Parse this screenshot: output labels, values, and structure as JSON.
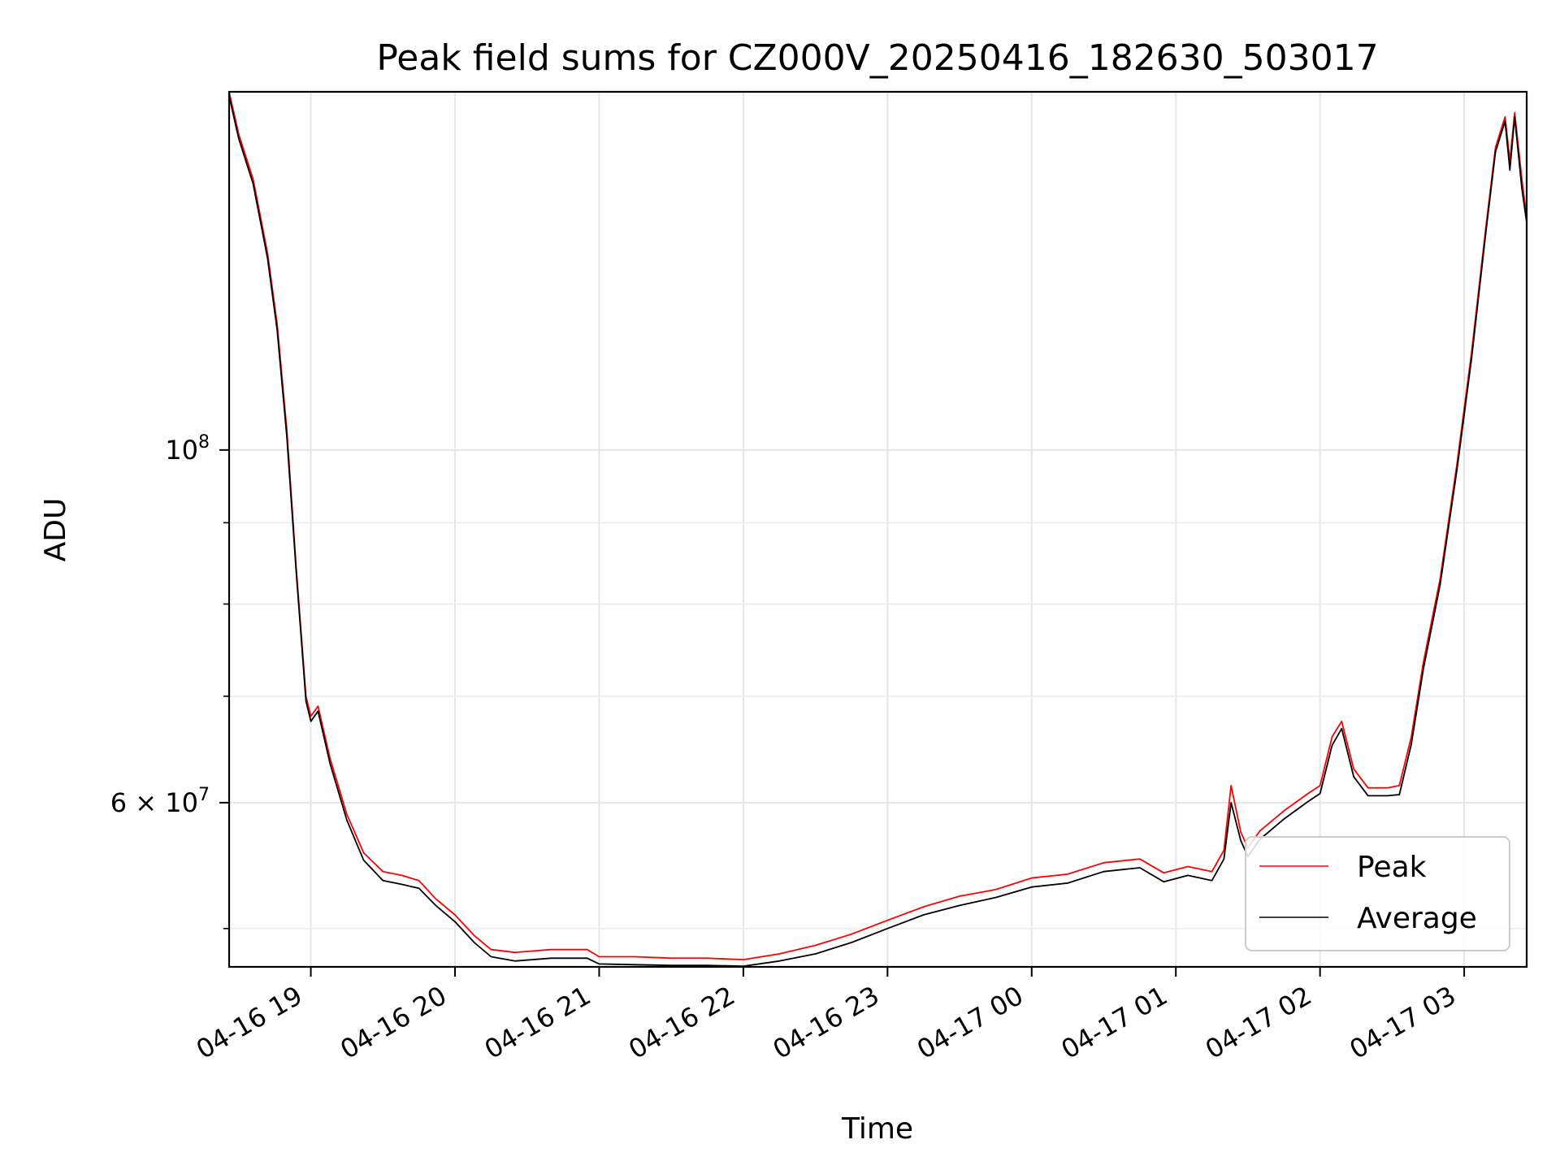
{
  "chart_data": {
    "type": "line",
    "title": "Peak field sums for CZ000V_20250416_182630_503017",
    "xlabel": "Time",
    "ylabel": "ADU",
    "y_scale": "log",
    "grid": true,
    "legend_position": "lower-right",
    "xlim": [
      "2025-04-16 18:26",
      "2025-04-17 03:26"
    ],
    "ylim": [
      47300000,
      168000000
    ],
    "x_ticks": [
      {
        "time": "2025-04-16 19:00",
        "label": "04-16 19"
      },
      {
        "time": "2025-04-16 20:00",
        "label": "04-16 20"
      },
      {
        "time": "2025-04-16 21:00",
        "label": "04-16 21"
      },
      {
        "time": "2025-04-16 22:00",
        "label": "04-16 22"
      },
      {
        "time": "2025-04-16 23:00",
        "label": "04-16 23"
      },
      {
        "time": "2025-04-17 00:00",
        "label": "04-17 00"
      },
      {
        "time": "2025-04-17 01:00",
        "label": "04-17 01"
      },
      {
        "time": "2025-04-17 02:00",
        "label": "04-17 02"
      },
      {
        "time": "2025-04-17 03:00",
        "label": "04-17 03"
      }
    ],
    "y_major_ticks": [
      {
        "value": 100000000,
        "base": "10",
        "exp": "8"
      },
      {
        "value": 60000000,
        "base": "6 × 10",
        "exp": "7"
      }
    ],
    "y_minor_ticks": [
      50000000,
      70000000,
      80000000,
      90000000
    ],
    "series": [
      {
        "name": "Peak",
        "color": "#ff0000",
        "points": [
          [
            "2025-04-16 18:26",
            168000000
          ],
          [
            "2025-04-16 18:30",
            158000000
          ],
          [
            "2025-04-16 18:36",
            148000000
          ],
          [
            "2025-04-16 18:42",
            133000000
          ],
          [
            "2025-04-16 18:46",
            120000000
          ],
          [
            "2025-04-16 18:50",
            103000000
          ],
          [
            "2025-04-16 18:54",
            84000000
          ],
          [
            "2025-04-16 18:58",
            70000000
          ],
          [
            "2025-04-16 19:00",
            68000000
          ],
          [
            "2025-04-16 19:03",
            69000000
          ],
          [
            "2025-04-16 19:08",
            64000000
          ],
          [
            "2025-04-16 19:15",
            59000000
          ],
          [
            "2025-04-16 19:22",
            55800000
          ],
          [
            "2025-04-16 19:30",
            54300000
          ],
          [
            "2025-04-16 19:38",
            54000000
          ],
          [
            "2025-04-16 19:45",
            53600000
          ],
          [
            "2025-04-16 19:52",
            52200000
          ],
          [
            "2025-04-16 20:00",
            51000000
          ],
          [
            "2025-04-16 20:08",
            49500000
          ],
          [
            "2025-04-16 20:15",
            48500000
          ],
          [
            "2025-04-16 20:25",
            48300000
          ],
          [
            "2025-04-16 20:40",
            48500000
          ],
          [
            "2025-04-16 20:55",
            48500000
          ],
          [
            "2025-04-16 21:00",
            48000000
          ],
          [
            "2025-04-16 21:15",
            48000000
          ],
          [
            "2025-04-16 21:30",
            47900000
          ],
          [
            "2025-04-16 21:45",
            47900000
          ],
          [
            "2025-04-16 22:00",
            47800000
          ],
          [
            "2025-04-16 22:15",
            48200000
          ],
          [
            "2025-04-16 22:30",
            48800000
          ],
          [
            "2025-04-16 22:45",
            49600000
          ],
          [
            "2025-04-16 23:00",
            50600000
          ],
          [
            "2025-04-16 23:15",
            51600000
          ],
          [
            "2025-04-16 23:30",
            52400000
          ],
          [
            "2025-04-16 23:45",
            52900000
          ],
          [
            "2025-04-17 00:00",
            53800000
          ],
          [
            "2025-04-17 00:15",
            54100000
          ],
          [
            "2025-04-17 00:30",
            55000000
          ],
          [
            "2025-04-17 00:45",
            55300000
          ],
          [
            "2025-04-17 00:55",
            54200000
          ],
          [
            "2025-04-17 01:05",
            54700000
          ],
          [
            "2025-04-17 01:15",
            54300000
          ],
          [
            "2025-04-17 01:20",
            56000000
          ],
          [
            "2025-04-17 01:23",
            61500000
          ],
          [
            "2025-04-17 01:27",
            57500000
          ],
          [
            "2025-04-17 01:30",
            56200000
          ],
          [
            "2025-04-17 01:35",
            57600000
          ],
          [
            "2025-04-17 01:45",
            59300000
          ],
          [
            "2025-04-17 01:55",
            60800000
          ],
          [
            "2025-04-17 02:00",
            61500000
          ],
          [
            "2025-04-17 02:05",
            66000000
          ],
          [
            "2025-04-17 02:09",
            67500000
          ],
          [
            "2025-04-17 02:14",
            63000000
          ],
          [
            "2025-04-17 02:20",
            61300000
          ],
          [
            "2025-04-17 02:28",
            61300000
          ],
          [
            "2025-04-17 02:33",
            61500000
          ],
          [
            "2025-04-17 02:38",
            66000000
          ],
          [
            "2025-04-17 02:43",
            73500000
          ],
          [
            "2025-04-17 02:50",
            83000000
          ],
          [
            "2025-04-17 02:57",
            98000000
          ],
          [
            "2025-04-17 03:03",
            115000000
          ],
          [
            "2025-04-17 03:09",
            138000000
          ],
          [
            "2025-04-17 03:13",
            155000000
          ],
          [
            "2025-04-17 03:17",
            162000000
          ],
          [
            "2025-04-17 03:19",
            152000000
          ],
          [
            "2025-04-17 03:21",
            163000000
          ],
          [
            "2025-04-17 03:24",
            148000000
          ],
          [
            "2025-04-17 03:26",
            140000000
          ]
        ]
      },
      {
        "name": "Average",
        "color": "#000000",
        "points": [
          [
            "2025-04-16 18:26",
            167000000
          ],
          [
            "2025-04-16 18:30",
            157000000
          ],
          [
            "2025-04-16 18:36",
            147000000
          ],
          [
            "2025-04-16 18:42",
            132000000
          ],
          [
            "2025-04-16 18:46",
            119000000
          ],
          [
            "2025-04-16 18:50",
            102000000
          ],
          [
            "2025-04-16 18:54",
            83500000
          ],
          [
            "2025-04-16 18:58",
            69500000
          ],
          [
            "2025-04-16 19:00",
            67500000
          ],
          [
            "2025-04-16 19:03",
            68500000
          ],
          [
            "2025-04-16 19:08",
            63500000
          ],
          [
            "2025-04-16 19:15",
            58500000
          ],
          [
            "2025-04-16 19:22",
            55200000
          ],
          [
            "2025-04-16 19:30",
            53600000
          ],
          [
            "2025-04-16 19:38",
            53300000
          ],
          [
            "2025-04-16 19:45",
            53000000
          ],
          [
            "2025-04-16 19:52",
            51700000
          ],
          [
            "2025-04-16 20:00",
            50500000
          ],
          [
            "2025-04-16 20:08",
            49000000
          ],
          [
            "2025-04-16 20:15",
            48000000
          ],
          [
            "2025-04-16 20:25",
            47700000
          ],
          [
            "2025-04-16 20:40",
            47900000
          ],
          [
            "2025-04-16 20:55",
            47900000
          ],
          [
            "2025-04-16 21:00",
            47500000
          ],
          [
            "2025-04-16 21:15",
            47450000
          ],
          [
            "2025-04-16 21:30",
            47400000
          ],
          [
            "2025-04-16 21:45",
            47400000
          ],
          [
            "2025-04-16 22:00",
            47350000
          ],
          [
            "2025-04-16 22:15",
            47700000
          ],
          [
            "2025-04-16 22:30",
            48200000
          ],
          [
            "2025-04-16 22:45",
            49000000
          ],
          [
            "2025-04-16 23:00",
            50000000
          ],
          [
            "2025-04-16 23:15",
            51000000
          ],
          [
            "2025-04-16 23:30",
            51700000
          ],
          [
            "2025-04-16 23:45",
            52300000
          ],
          [
            "2025-04-17 00:00",
            53100000
          ],
          [
            "2025-04-17 00:15",
            53400000
          ],
          [
            "2025-04-17 00:30",
            54300000
          ],
          [
            "2025-04-17 00:45",
            54600000
          ],
          [
            "2025-04-17 00:55",
            53500000
          ],
          [
            "2025-04-17 01:05",
            54000000
          ],
          [
            "2025-04-17 01:15",
            53600000
          ],
          [
            "2025-04-17 01:20",
            55300000
          ],
          [
            "2025-04-17 01:23",
            60000000
          ],
          [
            "2025-04-17 01:27",
            56800000
          ],
          [
            "2025-04-17 01:30",
            55500000
          ],
          [
            "2025-04-17 01:35",
            56900000
          ],
          [
            "2025-04-17 01:45",
            58600000
          ],
          [
            "2025-04-17 01:55",
            60100000
          ],
          [
            "2025-04-17 02:00",
            60800000
          ],
          [
            "2025-04-17 02:05",
            65200000
          ],
          [
            "2025-04-17 02:09",
            66800000
          ],
          [
            "2025-04-17 02:14",
            62300000
          ],
          [
            "2025-04-17 02:20",
            60600000
          ],
          [
            "2025-04-17 02:28",
            60600000
          ],
          [
            "2025-04-17 02:33",
            60700000
          ],
          [
            "2025-04-17 02:38",
            65300000
          ],
          [
            "2025-04-17 02:43",
            72800000
          ],
          [
            "2025-04-17 02:50",
            82300000
          ],
          [
            "2025-04-17 02:57",
            97200000
          ],
          [
            "2025-04-17 03:03",
            114000000
          ],
          [
            "2025-04-17 03:09",
            137000000
          ],
          [
            "2025-04-17 03:13",
            154000000
          ],
          [
            "2025-04-17 03:17",
            161000000
          ],
          [
            "2025-04-17 03:19",
            150000000
          ],
          [
            "2025-04-17 03:21",
            162000000
          ],
          [
            "2025-04-17 03:24",
            146000000
          ],
          [
            "2025-04-17 03:26",
            139000000
          ]
        ]
      }
    ]
  }
}
